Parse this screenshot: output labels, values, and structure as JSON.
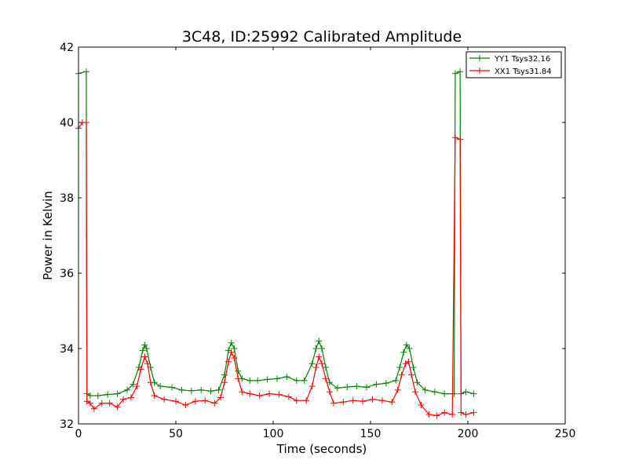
{
  "chart_data": {
    "type": "line",
    "title": "3C48, ID:25992 Calibrated Amplitude",
    "xlabel": "Time (seconds)",
    "ylabel": "Power in Kelvin",
    "xlim": [
      0,
      250
    ],
    "ylim": [
      32,
      42
    ],
    "xticks": [
      0,
      50,
      100,
      150,
      200,
      250
    ],
    "yticks": [
      32,
      34,
      36,
      38,
      40,
      42
    ],
    "grid": false,
    "legend_position": "top-right",
    "marker": "+",
    "series": [
      {
        "name": "YY1 Tsys32.16",
        "color": "#008000",
        "points": [
          [
            0,
            41.3
          ],
          [
            4,
            41.35
          ],
          [
            4.3,
            32.8
          ],
          [
            6,
            32.75
          ],
          [
            10,
            32.75
          ],
          [
            15,
            32.78
          ],
          [
            20,
            32.8
          ],
          [
            25,
            32.9
          ],
          [
            28,
            33.05
          ],
          [
            31,
            33.5
          ],
          [
            33,
            33.95
          ],
          [
            34,
            34.1
          ],
          [
            35,
            34.0
          ],
          [
            37,
            33.5
          ],
          [
            39,
            33.1
          ],
          [
            42,
            33.0
          ],
          [
            48,
            32.97
          ],
          [
            53,
            32.9
          ],
          [
            58,
            32.88
          ],
          [
            63,
            32.9
          ],
          [
            68,
            32.87
          ],
          [
            72,
            32.9
          ],
          [
            75,
            33.3
          ],
          [
            77,
            33.95
          ],
          [
            78.5,
            34.15
          ],
          [
            80,
            34.0
          ],
          [
            82,
            33.4
          ],
          [
            84,
            33.2
          ],
          [
            88,
            33.15
          ],
          [
            92,
            33.15
          ],
          [
            97,
            33.18
          ],
          [
            102,
            33.2
          ],
          [
            107,
            33.25
          ],
          [
            112,
            33.15
          ],
          [
            116,
            33.15
          ],
          [
            120,
            33.6
          ],
          [
            122,
            34.0
          ],
          [
            123.5,
            34.2
          ],
          [
            125,
            34.0
          ],
          [
            127,
            33.5
          ],
          [
            129,
            33.1
          ],
          [
            133,
            32.95
          ],
          [
            138,
            32.98
          ],
          [
            143,
            33.0
          ],
          [
            148,
            32.97
          ],
          [
            153,
            33.05
          ],
          [
            158,
            33.08
          ],
          [
            163,
            33.15
          ],
          [
            165,
            33.5
          ],
          [
            167,
            33.9
          ],
          [
            168.5,
            34.1
          ],
          [
            170,
            34.0
          ],
          [
            172,
            33.5
          ],
          [
            174,
            33.1
          ],
          [
            178,
            32.9
          ],
          [
            183,
            32.85
          ],
          [
            188,
            32.8
          ],
          [
            193,
            32.8
          ],
          [
            193.5,
            41.3
          ],
          [
            196,
            41.35
          ],
          [
            196.5,
            32.8
          ],
          [
            199,
            32.85
          ],
          [
            203,
            32.8
          ]
        ]
      },
      {
        "name": "XX1 Tsys31.84",
        "color": "#ff0000",
        "points": [
          [
            0,
            39.85
          ],
          [
            2,
            40.0
          ],
          [
            4,
            40.0
          ],
          [
            4.3,
            32.6
          ],
          [
            6,
            32.55
          ],
          [
            8,
            32.4
          ],
          [
            12,
            32.55
          ],
          [
            16,
            32.55
          ],
          [
            20,
            32.45
          ],
          [
            23,
            32.65
          ],
          [
            27,
            32.7
          ],
          [
            30,
            33.0
          ],
          [
            32,
            33.45
          ],
          [
            34,
            33.78
          ],
          [
            35.5,
            33.6
          ],
          [
            37,
            33.1
          ],
          [
            39,
            32.75
          ],
          [
            44,
            32.65
          ],
          [
            50,
            32.6
          ],
          [
            55,
            32.5
          ],
          [
            60,
            32.6
          ],
          [
            65,
            32.62
          ],
          [
            70,
            32.55
          ],
          [
            73,
            32.7
          ],
          [
            75,
            33.1
          ],
          [
            77,
            33.65
          ],
          [
            78.5,
            33.9
          ],
          [
            80,
            33.75
          ],
          [
            82,
            33.2
          ],
          [
            84,
            32.85
          ],
          [
            88,
            32.8
          ],
          [
            93,
            32.75
          ],
          [
            98,
            32.8
          ],
          [
            103,
            32.78
          ],
          [
            108,
            32.72
          ],
          [
            112,
            32.62
          ],
          [
            117,
            32.62
          ],
          [
            120,
            33.0
          ],
          [
            122,
            33.5
          ],
          [
            123.5,
            33.78
          ],
          [
            125,
            33.6
          ],
          [
            127,
            33.2
          ],
          [
            129,
            32.85
          ],
          [
            131,
            32.55
          ],
          [
            136,
            32.58
          ],
          [
            141,
            32.62
          ],
          [
            146,
            32.6
          ],
          [
            151,
            32.65
          ],
          [
            156,
            32.62
          ],
          [
            161,
            32.58
          ],
          [
            164,
            32.9
          ],
          [
            166,
            33.3
          ],
          [
            168,
            33.6
          ],
          [
            169.5,
            33.65
          ],
          [
            171,
            33.3
          ],
          [
            173,
            32.85
          ],
          [
            176,
            32.5
          ],
          [
            180,
            32.25
          ],
          [
            184,
            32.22
          ],
          [
            188,
            32.3
          ],
          [
            192,
            32.25
          ],
          [
            193.5,
            39.6
          ],
          [
            196,
            39.55
          ],
          [
            196.5,
            32.3
          ],
          [
            199,
            32.25
          ],
          [
            203,
            32.3
          ]
        ]
      }
    ]
  }
}
